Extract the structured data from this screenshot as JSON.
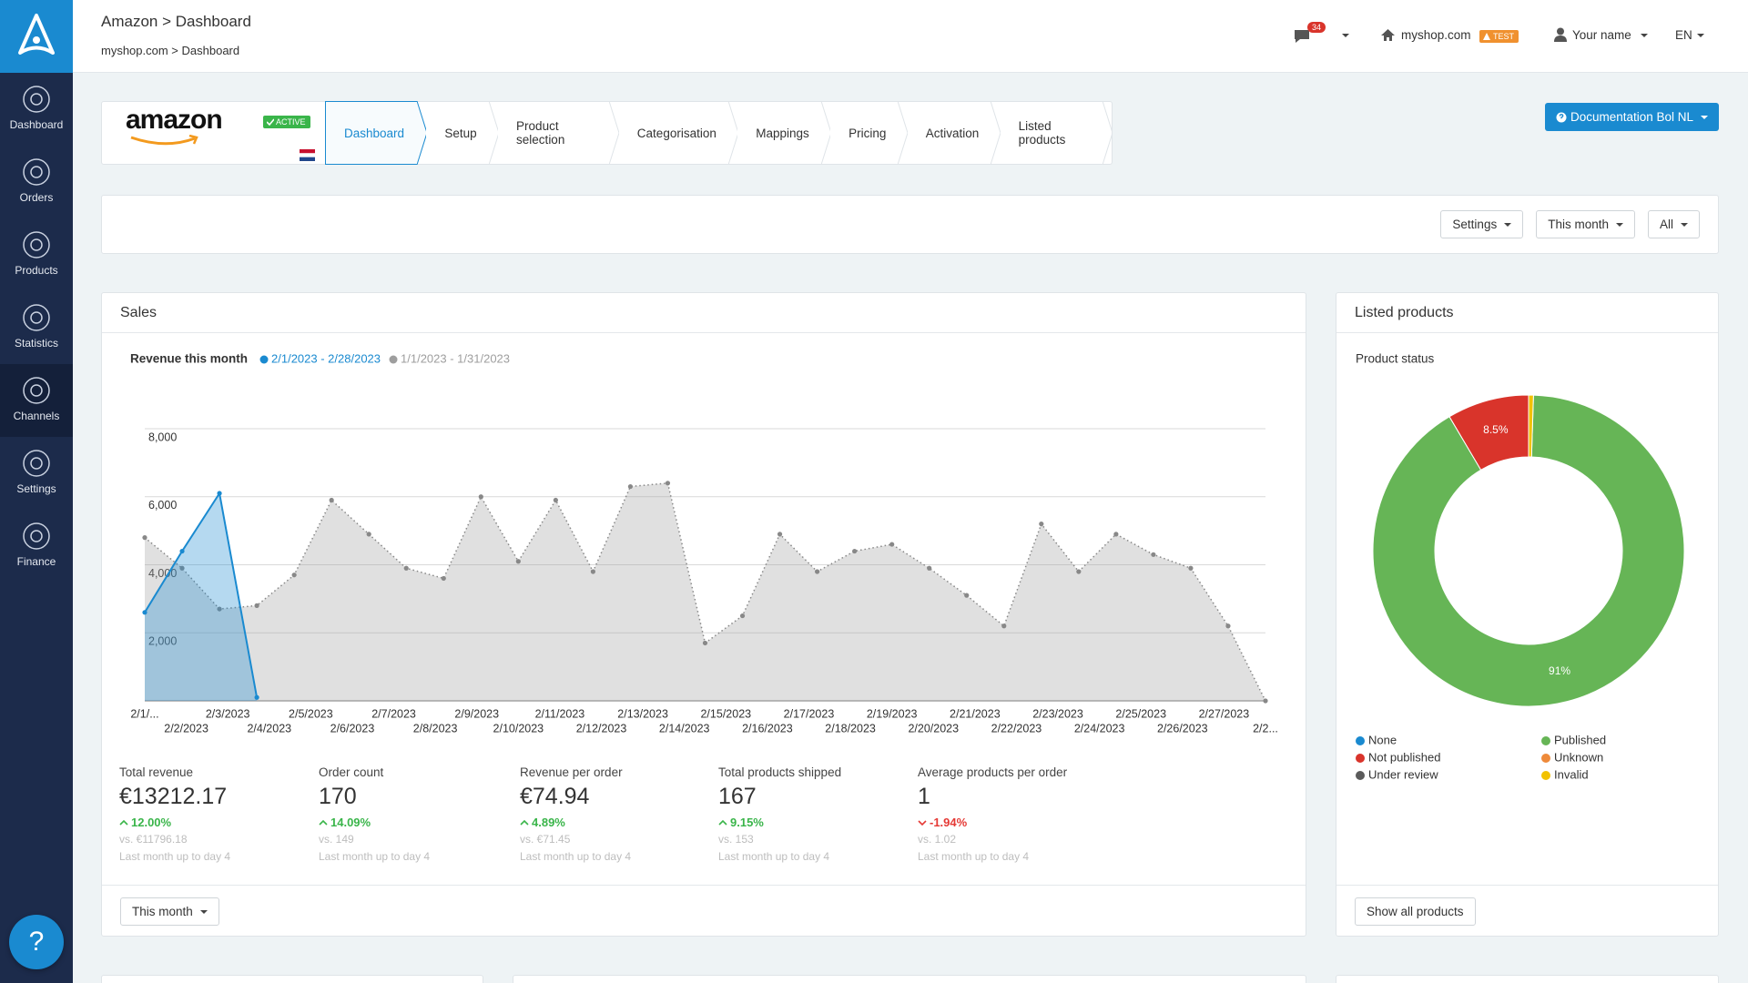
{
  "sidebar": {
    "items": [
      "Dashboard",
      "Orders",
      "Products",
      "Statistics",
      "Channels",
      "Settings",
      "Finance"
    ],
    "help": "?"
  },
  "header": {
    "title": "Amazon > Dashboard",
    "breadcrumb": "myshop.com > Dashboard",
    "notifications": 34,
    "shop": "myshop.com",
    "shop_badge": "TEST",
    "user": "Your name",
    "language": "EN"
  },
  "channel": {
    "logo": "amazon",
    "status": "ACTIVE",
    "tabs": [
      "Dashboard",
      "Setup",
      "Product selection",
      "Categorisation",
      "Mappings",
      "Pricing",
      "Activation",
      "Listed products"
    ]
  },
  "documentation_button": "Documentation Bol NL",
  "filters": [
    "Settings",
    "This month",
    "All"
  ],
  "sales": {
    "title": "Sales",
    "kpis": [
      {
        "label": "Total revenue",
        "value": "€13212.17",
        "change": "12.00%",
        "comparison": "vs. €11796.18",
        "note": "Last month up to day 4"
      },
      {
        "label": "Order count",
        "value": "170",
        "change": "14.09%",
        "comparison": "vs. 149",
        "note": "Last month up to day 4"
      },
      {
        "label": "Revenue per order",
        "value": "€74.94",
        "change": "4.89%",
        "comparison": "vs. €71.45",
        "note": "Last month up to day 4"
      },
      {
        "label": "Total products shipped",
        "value": "167",
        "change": "9.15%",
        "comparison": "vs. 153",
        "note": "Last month up to day 4"
      },
      {
        "label": "Average products per order",
        "value": "1",
        "change": "-1.94%",
        "comparison": "vs. 1.02",
        "note": "Last month up to day 4"
      }
    ],
    "period_button": "This month"
  },
  "listed_products": {
    "title": "Listed products",
    "button": "Show all products"
  },
  "chart_data": [
    {
      "type": "line",
      "title": "Revenue this month",
      "categories": [
        "2/1/...",
        "2/2/2023",
        "2/3/2023",
        "2/4/2023",
        "2/5/2023",
        "2/6/2023",
        "2/7/2023",
        "2/8/2023",
        "2/9/2023",
        "2/10/2023",
        "2/11/2023",
        "2/12/2023",
        "2/13/2023",
        "2/14/2023",
        "2/15/2023",
        "2/16/2023",
        "2/17/2023",
        "2/18/2023",
        "2/19/2023",
        "2/20/2023",
        "2/21/2023",
        "2/22/2023",
        "2/23/2023",
        "2/24/2023",
        "2/25/2023",
        "2/26/2023",
        "2/27/2023",
        "2/2...",
        null,
        null,
        null
      ],
      "series": [
        {
          "name": "2/1/2023 - 2/28/2023",
          "color": "#1a8ad0",
          "line_style": "solid",
          "values": [
            2600,
            4400,
            6100,
            100,
            null,
            null,
            null,
            null,
            null,
            null,
            null,
            null,
            null,
            null,
            null,
            null,
            null,
            null,
            null,
            null,
            null,
            null,
            null,
            null,
            null,
            null,
            null,
            null,
            null,
            null,
            null
          ]
        },
        {
          "name": "1/1/2023 - 1/31/2023",
          "color": "#9e9e9e",
          "line_style": "dotted",
          "values": [
            4800,
            3900,
            2700,
            2800,
            3700,
            5900,
            4900,
            3900,
            3600,
            6000,
            4100,
            5900,
            3800,
            6300,
            6400,
            1700,
            2500,
            4900,
            3800,
            4400,
            4600,
            3900,
            3100,
            2200,
            5200,
            3800,
            4900,
            4300,
            3900,
            2200,
            0
          ]
        }
      ],
      "ylim": [
        0,
        8000
      ],
      "yticks": [
        {
          "value": 2000,
          "label": "2,000"
        },
        {
          "value": 4000,
          "label": "4,000"
        },
        {
          "value": 6000,
          "label": "6,000"
        },
        {
          "value": 8000,
          "label": "8,000"
        }
      ],
      "grid": true
    },
    {
      "type": "pie",
      "title": "Product status",
      "donut": true,
      "categories": [
        "None",
        "Not published",
        "Under review",
        "Published",
        "Unknown",
        "Invalid"
      ],
      "values": [
        0,
        8.5,
        0,
        91,
        0,
        0.5
      ],
      "value_labels": [
        null,
        "8.5%",
        null,
        "91%",
        null,
        null
      ],
      "colors": [
        "#1a8ad0",
        "#d9342b",
        "#5b5b5b",
        "#66b556",
        "#ee8a3a",
        "#f2c200"
      ]
    }
  ]
}
